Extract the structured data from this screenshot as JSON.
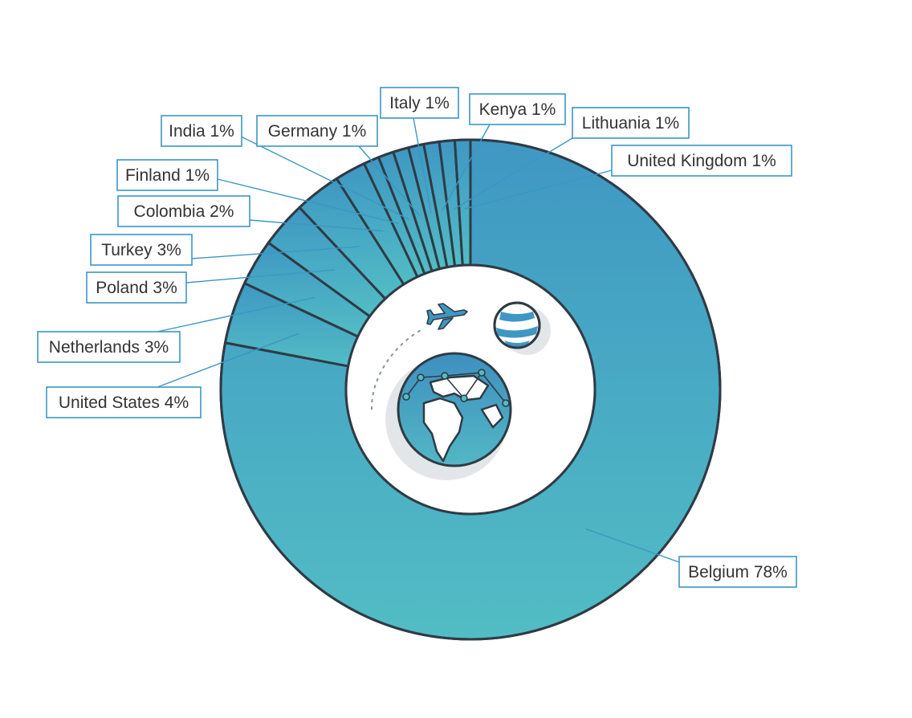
{
  "chart_data": {
    "type": "pie",
    "variant": "donut",
    "categories": [
      "Belgium",
      "United States",
      "Netherlands",
      "Poland",
      "Turkey",
      "Colombia",
      "Finland",
      "India",
      "Germany",
      "Italy",
      "Kenya",
      "Lithuania",
      "United Kingdom"
    ],
    "series": [
      {
        "values": [
          78,
          4,
          3,
          3,
          3,
          2,
          1,
          1,
          1,
          1,
          1,
          1,
          1
        ]
      }
    ],
    "labels": [
      "Belgium 78%",
      "United States 4%",
      "Netherlands 3%",
      "Poland 3%",
      "Turkey 3%",
      "Colombia 2%",
      "Finland 1%",
      "India 1%",
      "Germany 1%",
      "Italy 1%",
      "Kenya 1%",
      "Lithuania 1%",
      "United Kingdom 1%"
    ],
    "colors": {
      "slice_top": "#3f97c3",
      "slice_bottom": "#52bdc4",
      "outline": "#2f3b45",
      "label_border": "#3a97c4",
      "label_text": "#333333"
    },
    "legend": "none"
  },
  "center_icon": {
    "icons": [
      "airplane-icon",
      "globe-icon",
      "small-globe-icon"
    ]
  }
}
